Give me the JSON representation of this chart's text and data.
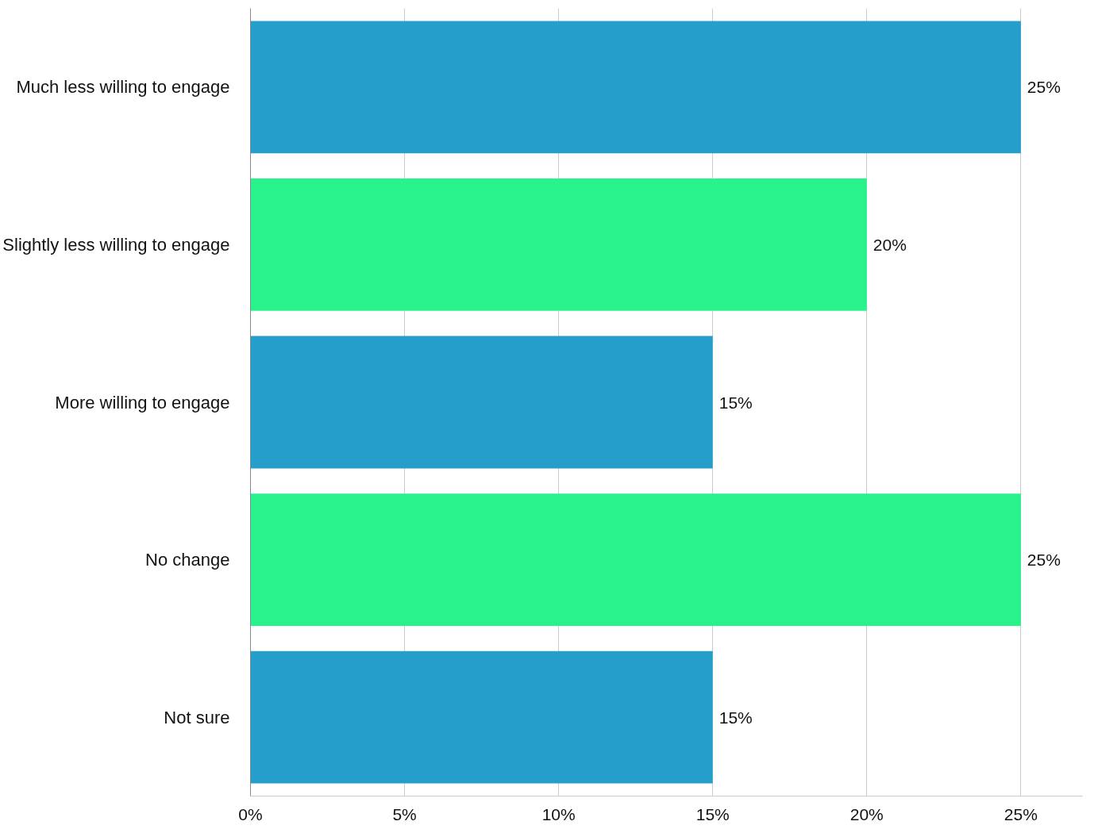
{
  "chart_data": {
    "type": "bar",
    "orientation": "horizontal",
    "categories": [
      "Much less willing to engage",
      "Slightly less willing to engage",
      "More willing to engage",
      "No change",
      "Not sure"
    ],
    "values": [
      25,
      20,
      15,
      25,
      15
    ],
    "colors": [
      "#259ecb",
      "#27f28c",
      "#259ecb",
      "#27f28c",
      "#259ecb"
    ],
    "value_labels": [
      "25%",
      "20%",
      "15%",
      "25%",
      "15%"
    ],
    "xlim": [
      0,
      27
    ],
    "xticks": [
      {
        "value": 0,
        "label": "0%"
      },
      {
        "value": 5,
        "label": "5%"
      },
      {
        "value": 10,
        "label": "10%"
      },
      {
        "value": 15,
        "label": "15%"
      },
      {
        "value": 20,
        "label": "20%"
      },
      {
        "value": 25,
        "label": "25%"
      }
    ],
    "grid": "x"
  }
}
